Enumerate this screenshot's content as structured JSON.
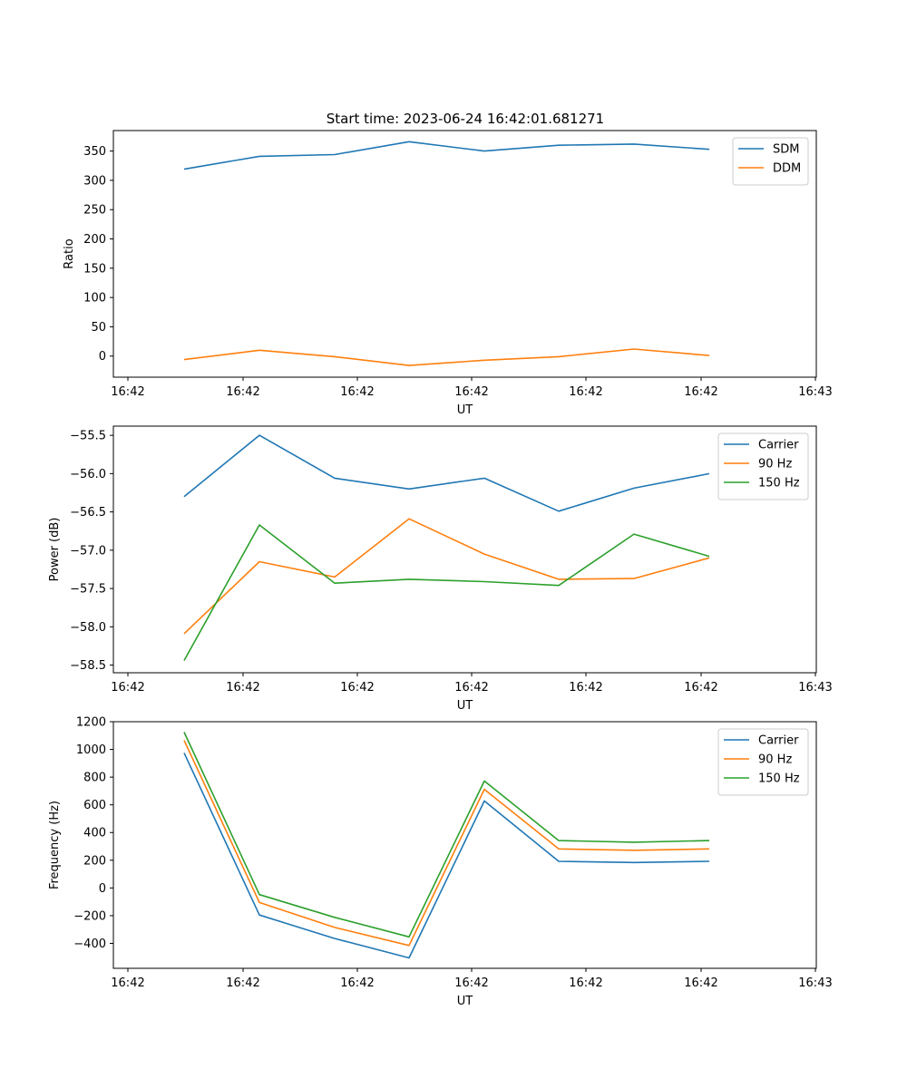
{
  "figure": {
    "suptitle": "Start time: 2023-06-24 16:42:01.681271"
  },
  "chart_data": [
    {
      "type": "line",
      "xlabel": "UT",
      "ylabel": "Ratio",
      "x_tick_labels": [
        "16:42",
        "16:42",
        "16:42",
        "16:42",
        "16:42",
        "16:42",
        "16:43"
      ],
      "y_ticks": [
        0,
        50,
        100,
        150,
        200,
        250,
        300,
        350
      ],
      "ylim": [
        -36,
        385
      ],
      "grid": false,
      "legend_position": "top-right",
      "series": [
        {
          "name": "SDM",
          "color": "#1f77b4",
          "values": [
            319,
            341,
            344,
            366,
            350,
            360,
            362,
            353
          ]
        },
        {
          "name": "DDM",
          "color": "#ff7f0e",
          "values": [
            -6,
            10,
            -1,
            -16,
            -7,
            -1,
            12,
            1
          ]
        }
      ]
    },
    {
      "type": "line",
      "xlabel": "UT",
      "ylabel": "Power (dB)",
      "x_tick_labels": [
        "16:42",
        "16:42",
        "16:42",
        "16:42",
        "16:42",
        "16:42",
        "16:43"
      ],
      "y_ticks": [
        -58.5,
        -58.0,
        -57.5,
        -57.0,
        -56.5,
        -56.0,
        -55.5
      ],
      "y_tick_labels": [
        "−58.5",
        "−58.0",
        "−57.5",
        "−57.0",
        "−56.5",
        "−56.0",
        "−55.5"
      ],
      "ylim": [
        -58.6,
        -55.38
      ],
      "grid": false,
      "legend_position": "top-right",
      "series": [
        {
          "name": "Carrier",
          "color": "#1f77b4",
          "values": [
            -56.3,
            -55.5,
            -56.06,
            -56.2,
            -56.06,
            -56.49,
            -56.19,
            -56.0
          ]
        },
        {
          "name": "90 Hz",
          "color": "#ff7f0e",
          "values": [
            -58.09,
            -57.15,
            -57.35,
            -56.59,
            -57.05,
            -57.38,
            -57.37,
            -57.1
          ]
        },
        {
          "name": "150 Hz",
          "color": "#2ca02c",
          "values": [
            -58.44,
            -56.67,
            -57.43,
            -57.38,
            -57.41,
            -57.46,
            -56.79,
            -57.08
          ]
        }
      ]
    },
    {
      "type": "line",
      "xlabel": "UT",
      "ylabel": "Frequency (Hz)",
      "x_tick_labels": [
        "16:42",
        "16:42",
        "16:42",
        "16:42",
        "16:42",
        "16:42",
        "16:43"
      ],
      "y_ticks": [
        -400,
        -200,
        0,
        200,
        400,
        600,
        800,
        1000,
        1200
      ],
      "y_tick_labels": [
        "−400",
        "−200",
        "0",
        "200",
        "400",
        "600",
        "800",
        "1000",
        "1200"
      ],
      "ylim": [
        -580,
        1200
      ],
      "grid": false,
      "legend_position": "top-right",
      "series": [
        {
          "name": "Carrier",
          "color": "#1f77b4",
          "values": [
            975,
            -195,
            -365,
            -505,
            628,
            192,
            184,
            192
          ]
        },
        {
          "name": "90 Hz",
          "color": "#ff7f0e",
          "values": [
            1065,
            -105,
            -285,
            -415,
            712,
            282,
            272,
            282
          ]
        },
        {
          "name": "150 Hz",
          "color": "#2ca02c",
          "values": [
            1125,
            -48,
            -212,
            -353,
            772,
            342,
            330,
            342
          ]
        }
      ]
    }
  ]
}
